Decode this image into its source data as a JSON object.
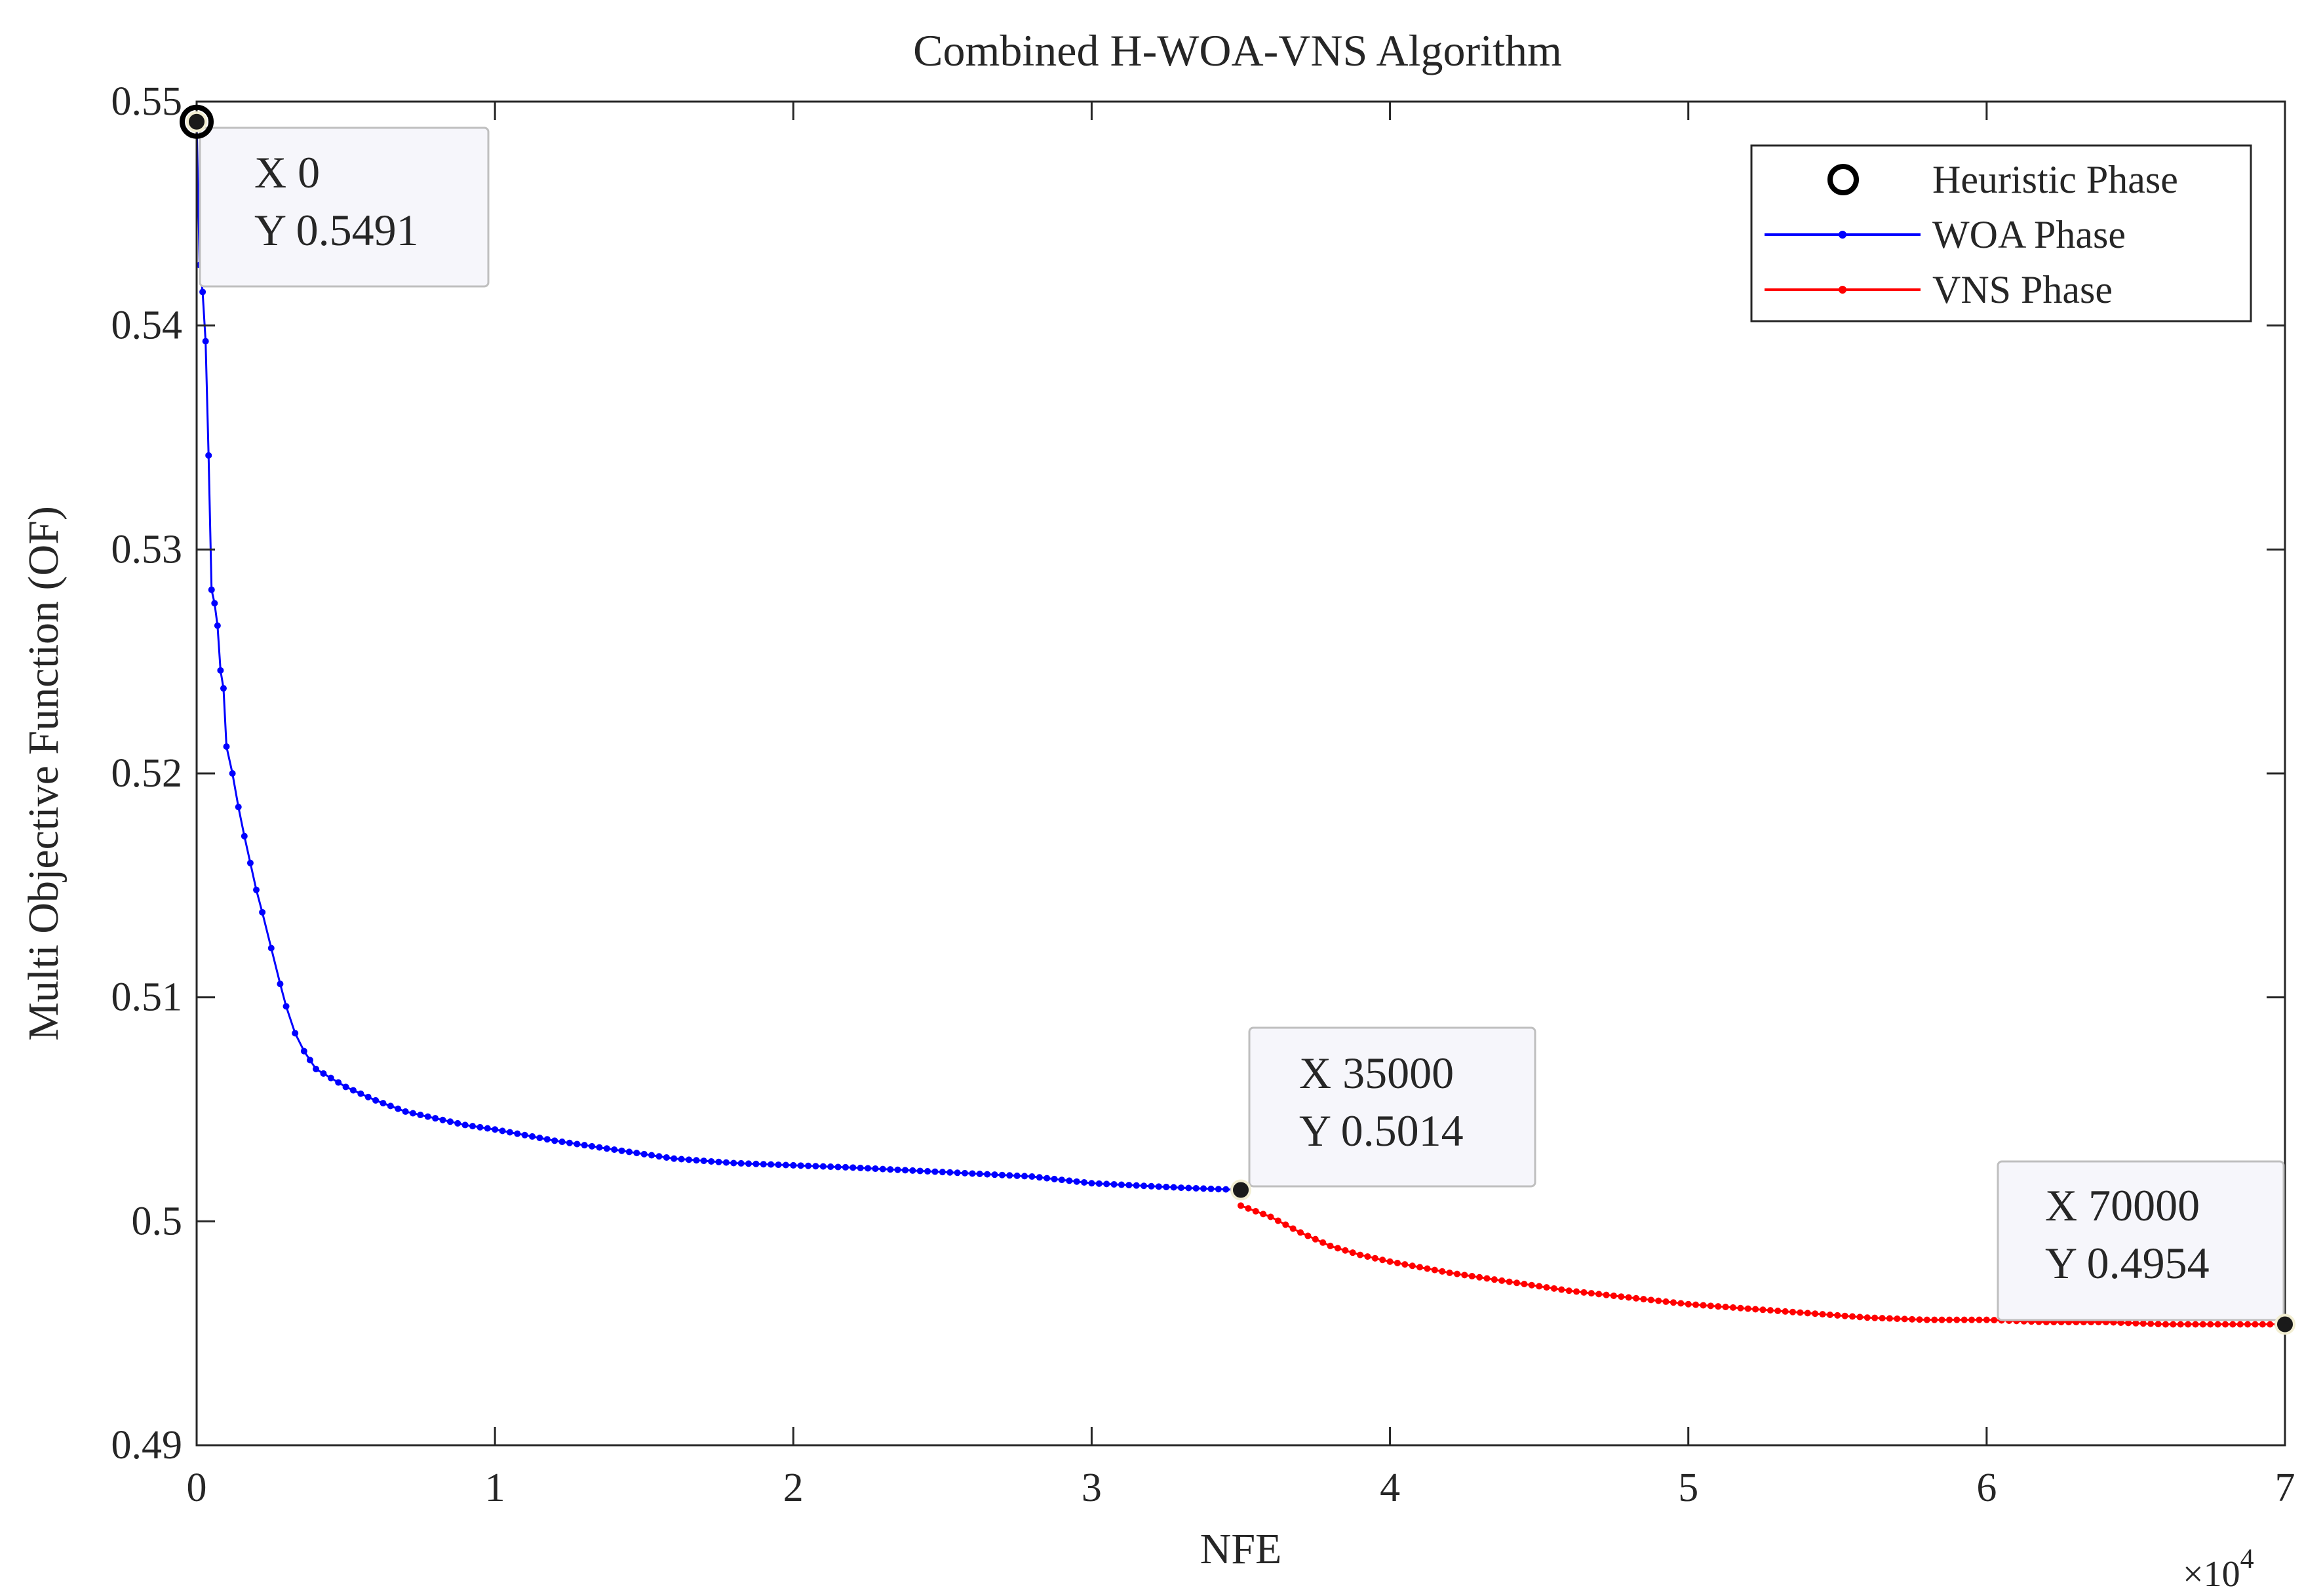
{
  "chart_data": {
    "type": "line",
    "title": "Combined H-WOA-VNS Algorithm",
    "xlabel": "NFE",
    "ylabel": "Multi Objective Function (OF)",
    "x_exponent_label": "×10",
    "x_exponent_power": "4",
    "xlim": [
      0,
      70000
    ],
    "ylim": [
      0.49,
      0.55
    ],
    "x_scale": 10000,
    "xticks": [
      0,
      1,
      2,
      3,
      4,
      5,
      6,
      7
    ],
    "yticks": [
      0.49,
      0.5,
      0.51,
      0.52,
      0.53,
      0.54,
      0.55
    ],
    "ytick_labels": [
      "0.49",
      "0.5",
      "0.51",
      "0.52",
      "0.53",
      "0.54",
      "0.55"
    ],
    "grid": false,
    "legend_position": "top-right",
    "legend": [
      {
        "name": "Heuristic Phase",
        "style": "marker-circle",
        "color": "#000000"
      },
      {
        "name": "WOA Phase",
        "style": "line-dot",
        "color": "#0000ff"
      },
      {
        "name": "VNS Phase",
        "style": "line-dot",
        "color": "#ff0000"
      }
    ],
    "series": [
      {
        "name": "WOA Phase",
        "color": "#0000ff",
        "x": [
          0,
          100,
          200,
          300,
          400,
          500,
          600,
          700,
          800,
          900,
          1000,
          1200,
          1400,
          1600,
          1800,
          2000,
          2200,
          2500,
          2800,
          3000,
          3300,
          3600,
          4000,
          4500,
          5000,
          5500,
          6000,
          7000,
          8000,
          9000,
          10000,
          12000,
          14000,
          16000,
          18000,
          20000,
          22000,
          25000,
          28000,
          30000,
          33000,
          35000
        ],
        "values": [
          0.5491,
          0.5427,
          0.5415,
          0.5393,
          0.5342,
          0.5282,
          0.5276,
          0.5266,
          0.5246,
          0.5238,
          0.5212,
          0.52,
          0.5185,
          0.5172,
          0.516,
          0.5148,
          0.5138,
          0.5122,
          0.5106,
          0.5096,
          0.5084,
          0.5076,
          0.5068,
          0.5064,
          0.506,
          0.5057,
          0.5054,
          0.5049,
          0.5046,
          0.5043,
          0.5041,
          0.5036,
          0.5032,
          0.5028,
          0.5026,
          0.5025,
          0.5024,
          0.5022,
          0.502,
          0.5017,
          0.5015,
          0.5014
        ]
      },
      {
        "name": "VNS Phase",
        "color": "#ff0000",
        "x": [
          35000,
          36000,
          37000,
          38000,
          39000,
          40000,
          42000,
          44000,
          46000,
          48000,
          50000,
          52000,
          54000,
          56000,
          58000,
          60000,
          62000,
          64000,
          66000,
          68000,
          70000
        ],
        "values": [
          0.5007,
          0.5002,
          0.4995,
          0.4989,
          0.4985,
          0.4982,
          0.4977,
          0.4973,
          0.4969,
          0.4966,
          0.4963,
          0.4961,
          0.4959,
          0.4957,
          0.4956,
          0.4956,
          0.4955,
          0.4955,
          0.4954,
          0.4954,
          0.4954
        ]
      }
    ],
    "heuristic_point": {
      "x": 0,
      "y": 0.5491
    },
    "datatips": [
      {
        "x_text": "X 0",
        "y_text": "Y 0.5491",
        "x": 0,
        "y": 0.5491
      },
      {
        "x_text": "X 35000",
        "y_text": "Y 0.5014",
        "x": 35000,
        "y": 0.5014
      },
      {
        "x_text": "X 70000",
        "y_text": "Y 0.4954",
        "x": 70000,
        "y": 0.4954
      }
    ]
  }
}
